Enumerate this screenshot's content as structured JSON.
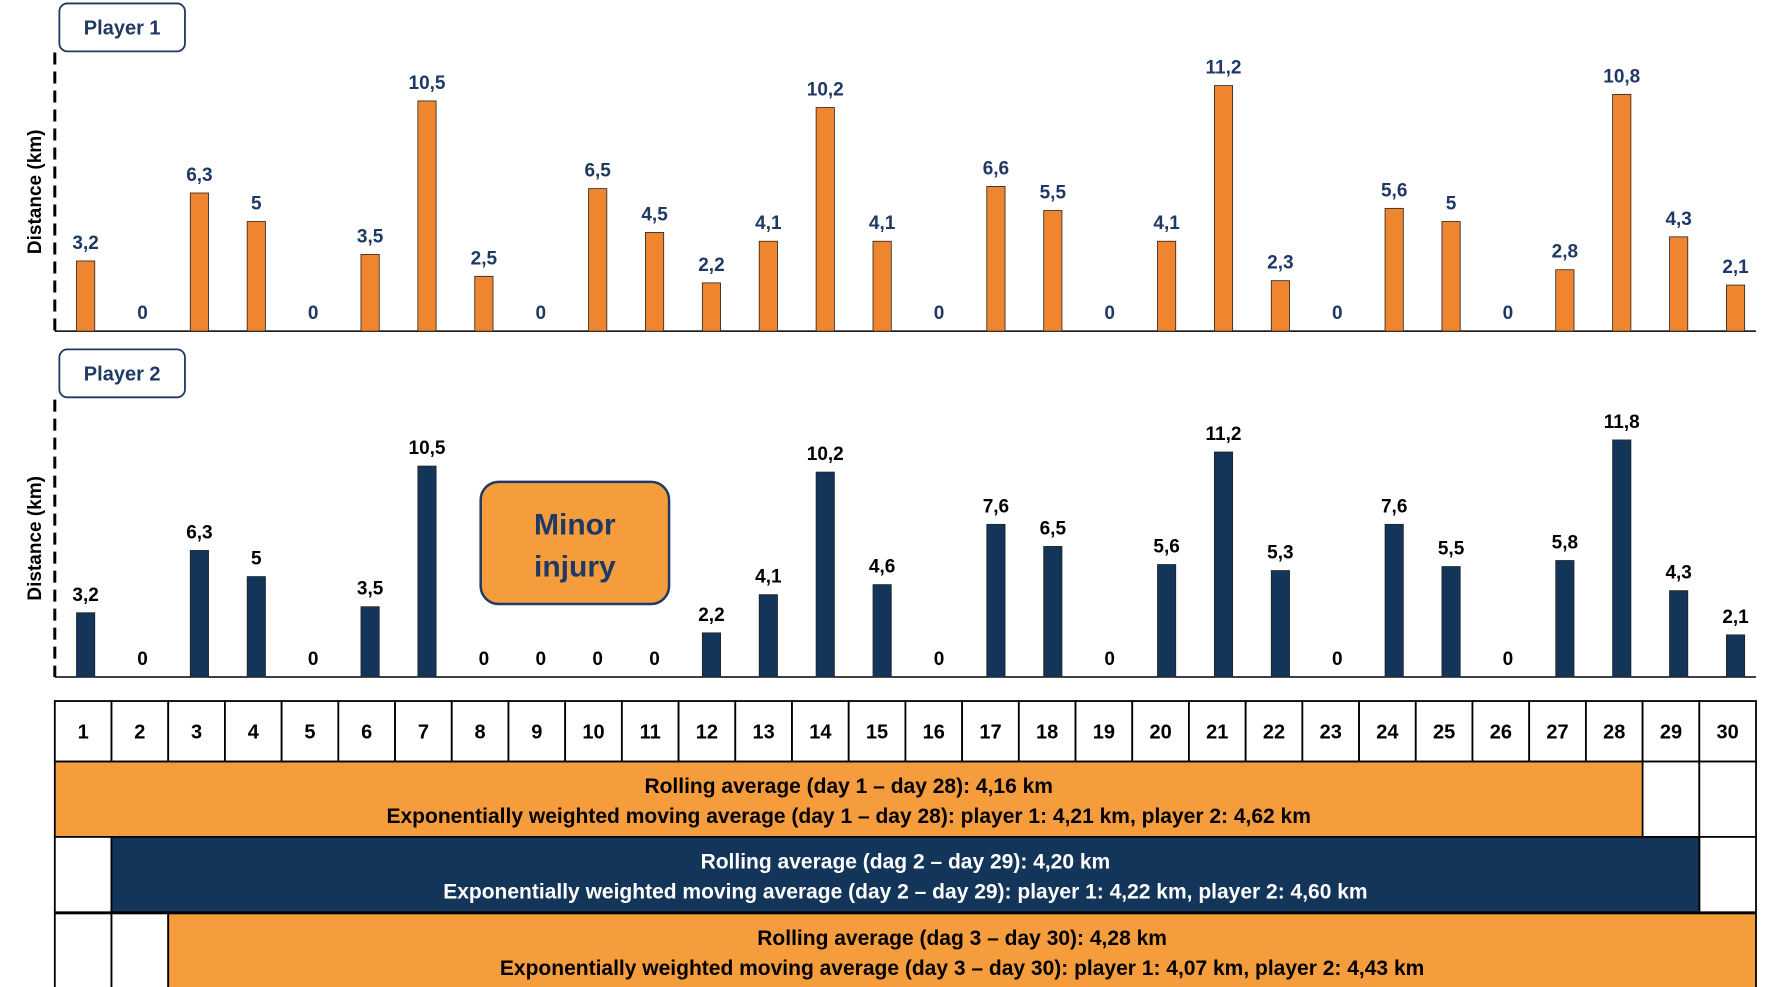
{
  "colors": {
    "orange": "#F0852F",
    "orange_band": "#F59D3D",
    "navy": "#13355A",
    "border": "#000000",
    "label_navy": "#1F3864",
    "label_black": "#000000"
  },
  "chart_data": [
    {
      "type": "bar",
      "title": "Player 1",
      "ylabel": "Distance (km)",
      "xlabel": "",
      "categories": [
        "1",
        "2",
        "3",
        "4",
        "5",
        "6",
        "7",
        "8",
        "9",
        "10",
        "11",
        "12",
        "13",
        "14",
        "15",
        "16",
        "17",
        "18",
        "19",
        "20",
        "21",
        "22",
        "23",
        "24",
        "25",
        "26",
        "27",
        "28",
        "29",
        "30"
      ],
      "values": [
        3.2,
        0,
        6.3,
        5,
        0,
        3.5,
        10.5,
        2.5,
        0,
        6.5,
        4.5,
        2.2,
        4.1,
        10.2,
        4.1,
        0,
        6.6,
        5.5,
        0,
        4.1,
        11.2,
        2.3,
        0,
        5.6,
        5,
        0,
        2.8,
        10.8,
        4.3,
        2.1
      ],
      "labels": [
        "3,2",
        "0",
        "6,3",
        "5",
        "0",
        "3,5",
        "10,5",
        "2,5",
        "0",
        "6,5",
        "4,5",
        "2,2",
        "4,1",
        "10,2",
        "4,1",
        "0",
        "6,6",
        "5,5",
        "0",
        "4,1",
        "11,2",
        "2,3",
        "0",
        "5,6",
        "5",
        "0",
        "2,8",
        "10,8",
        "4,3",
        "2,1"
      ],
      "bar_color": "#F0852F",
      "label_color": "#1F3864",
      "ylim": [
        0,
        12
      ]
    },
    {
      "type": "bar",
      "title": "Player 2",
      "ylabel": "Distance (km)",
      "xlabel": "",
      "categories": [
        "1",
        "2",
        "3",
        "4",
        "5",
        "6",
        "7",
        "8",
        "9",
        "10",
        "11",
        "12",
        "13",
        "14",
        "15",
        "16",
        "17",
        "18",
        "19",
        "20",
        "21",
        "22",
        "23",
        "24",
        "25",
        "26",
        "27",
        "28",
        "29",
        "30"
      ],
      "values": [
        3.2,
        0,
        6.3,
        5,
        0,
        3.5,
        10.5,
        0,
        0,
        0,
        0,
        2.2,
        4.1,
        10.2,
        4.6,
        0,
        7.6,
        6.5,
        0,
        5.6,
        11.2,
        5.3,
        0,
        7.6,
        5.5,
        0,
        5.8,
        11.8,
        4.3,
        2.1
      ],
      "labels": [
        "3,2",
        "0",
        "6,3",
        "5",
        "0",
        "3,5",
        "10,5",
        "0",
        "0",
        "0",
        "0",
        "2,2",
        "4,1",
        "10,2",
        "4,6",
        "0",
        "7,6",
        "6,5",
        "0",
        "5,6",
        "11,2",
        "5,3",
        "0",
        "7,6",
        "5,5",
        "0",
        "5,8",
        "11,8",
        "4,3",
        "2,1"
      ],
      "bar_color": "#13355A",
      "label_color": "#000000",
      "annotation": {
        "line1": "Minor",
        "line2": "injury"
      },
      "ylim": [
        0,
        12
      ]
    }
  ],
  "day_axis": [
    "1",
    "2",
    "3",
    "4",
    "5",
    "6",
    "7",
    "8",
    "9",
    "10",
    "11",
    "12",
    "13",
    "14",
    "15",
    "16",
    "17",
    "18",
    "19",
    "20",
    "21",
    "22",
    "23",
    "24",
    "25",
    "26",
    "27",
    "28",
    "29",
    "30"
  ],
  "windows": [
    {
      "start_day": 1,
      "end_day": 28,
      "line1": "Rolling average (day 1 – day 28): 4,16 km",
      "line2": "Exponentially weighted moving average (day 1 – day 28): player 1: 4,21 km, player 2: 4,62 km",
      "fill": "#F59D3D",
      "text_color": "#000000"
    },
    {
      "start_day": 2,
      "end_day": 29,
      "line1": "Rolling average (dag 2 – day 29): 4,20 km",
      "line2": "Exponentially weighted moving average (day 2 – day 29): player 1: 4,22 km, player 2: 4,60 km",
      "fill": "#13355A",
      "text_color": "#FFFFFF"
    },
    {
      "start_day": 3,
      "end_day": 30,
      "line1": "Rolling average (dag 3 – day 30): 4,28 km",
      "line2": "Exponentially weighted moving average (day 3 – day 30): player 1: 4,07 km, player 2: 4,43 km",
      "fill": "#F59D3D",
      "text_color": "#000000"
    }
  ]
}
